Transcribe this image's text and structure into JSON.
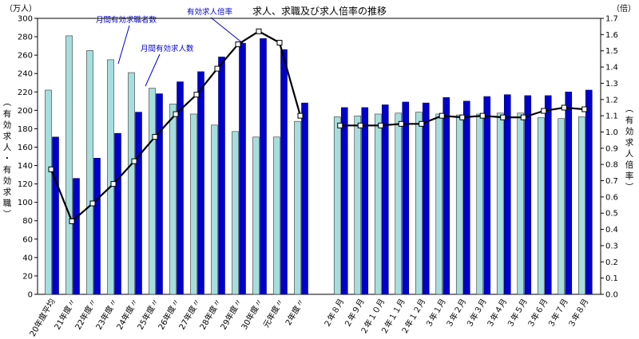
{
  "chart_data": {
    "type": "bar",
    "title": "求人、求職及び求人倍率の推移",
    "left_unit": "（万人）",
    "right_unit": "（倍）",
    "ylabel_left": "（有効求人・有効求職）",
    "ylabel_right": "（有効求人倍率）",
    "ylim_left": [
      0,
      300
    ],
    "ylim_right": [
      0.0,
      1.7
    ],
    "yticks_left": [
      "0",
      "20",
      "40",
      "60",
      "80",
      "100",
      "120",
      "140",
      "160",
      "180",
      "200",
      "220",
      "240",
      "260",
      "280",
      "300"
    ],
    "yticks_right": [
      "0.0",
      "0.1",
      "0.2",
      "0.3",
      "0.4",
      "0.5",
      "0.6",
      "0.7",
      "0.8",
      "0.9",
      "1.0",
      "1.1",
      "1.2",
      "1.3",
      "1.4",
      "1.5",
      "1.6",
      "1.7"
    ],
    "grid": false,
    "categories": [
      "20年度平均",
      "21年度〃",
      "22年度〃",
      "23年度〃",
      "24年度〃",
      "25年度〃",
      "26年度〃",
      "27年度〃",
      "28年度〃",
      "29年度〃",
      "30年度〃",
      "元年度〃",
      "2年度〃",
      "２年８月",
      "２年９月",
      "２年１０月",
      "２年１１月",
      "２年１２月",
      "３年１月",
      "３年２月",
      "３年３月",
      "３年４月",
      "３年５月",
      "３年６月",
      "３年７月",
      "３年８月"
    ],
    "series": [
      {
        "name": "月間有効求職者数",
        "type": "bar",
        "axis": "left",
        "color": "#a6dede",
        "values": [
          222,
          281,
          265,
          255,
          241,
          224,
          207,
          196,
          184,
          177,
          171,
          171,
          188,
          193,
          194,
          196,
          197,
          198,
          196,
          195,
          196,
          197,
          197,
          192,
          191,
          193
        ]
      },
      {
        "name": "月間有効求人数",
        "type": "bar",
        "axis": "left",
        "color": "#0000cc",
        "values": [
          171,
          126,
          148,
          175,
          198,
          218,
          231,
          242,
          258,
          273,
          278,
          266,
          208,
          203,
          203,
          206,
          209,
          208,
          214,
          210,
          215,
          217,
          216,
          216,
          220,
          222
        ]
      },
      {
        "name": "有効求人倍率",
        "type": "line",
        "axis": "right",
        "color": "#000000",
        "values": [
          0.77,
          0.45,
          0.56,
          0.68,
          0.82,
          0.97,
          1.11,
          1.23,
          1.39,
          1.54,
          1.62,
          1.55,
          1.1,
          1.04,
          1.04,
          1.04,
          1.05,
          1.05,
          1.1,
          1.09,
          1.1,
          1.09,
          1.09,
          1.13,
          1.15,
          1.14
        ]
      }
    ],
    "legend": "annotations",
    "annotations": [
      "月間有効求職者数",
      "月間有効求人数",
      "有効求人倍率"
    ]
  }
}
